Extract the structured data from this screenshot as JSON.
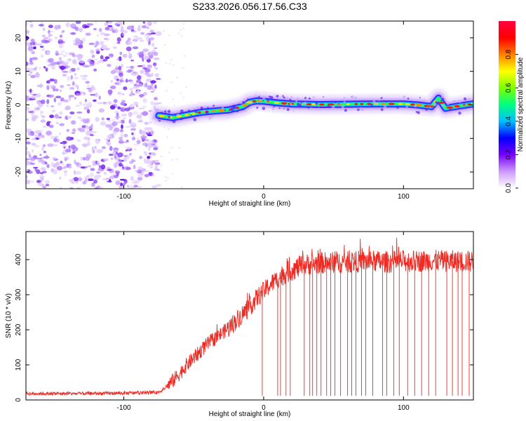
{
  "title": "S233.2026.056.17.56.C33",
  "colors": {
    "snr_line": "#ee2a22",
    "spectrum_noise": "#8a2be2",
    "colorbar_stops": [
      "#ffffff",
      "#cc99ff",
      "#7700ff",
      "#0000ff",
      "#00bfff",
      "#00ff80",
      "#80ff00",
      "#ffff00",
      "#ff8000",
      "#ff0000",
      "#ff0040"
    ]
  },
  "chart_data": [
    {
      "type": "heatmap",
      "name": "spectrogram",
      "xlabel": "Height of straight line (km)",
      "ylabel": "Frequency (Hz)",
      "xlim": [
        -170,
        150
      ],
      "ylim": [
        -25,
        25
      ],
      "xticks": [
        -100,
        0,
        100
      ],
      "xtick_labels": [
        "-100",
        "0",
        "100"
      ],
      "yticks": [
        -20,
        -10,
        0,
        10,
        20
      ],
      "ytick_labels": [
        "-20",
        "-10",
        "0",
        "10",
        "20"
      ],
      "noise_region_x": [
        -170,
        -75
      ],
      "signal_track": {
        "x": [
          -75,
          -65,
          -55,
          -45,
          -35,
          -25,
          -15,
          -10,
          -5,
          0,
          10,
          20,
          40,
          60,
          80,
          100,
          110,
          120,
          125,
          130,
          140,
          150
        ],
        "freq": [
          -3.2,
          -3.8,
          -3.0,
          -2.2,
          -1.8,
          -1.5,
          -0.5,
          0.8,
          1.2,
          1.1,
          0.6,
          0.3,
          0.1,
          0.2,
          0.3,
          0.3,
          0.0,
          -0.5,
          2.0,
          -1.0,
          -0.3,
          0.3
        ]
      },
      "colorbar": {
        "label": "Normalized spectral amplitude",
        "range": [
          0.0,
          1.0
        ],
        "ticks": [
          0.0,
          0.2,
          0.4,
          0.6,
          0.8
        ],
        "tick_labels": [
          "0.0",
          "0.2",
          "0.4",
          "0.6",
          "0.8"
        ]
      }
    },
    {
      "type": "line",
      "name": "snr",
      "xlabel": "Height of straight line (km)",
      "ylabel": "SNR (10 * v/v)",
      "xlim": [
        -170,
        150
      ],
      "ylim": [
        0,
        480
      ],
      "xticks": [
        -100,
        0,
        100
      ],
      "xtick_labels": [
        "-100",
        "0",
        "100"
      ],
      "yticks": [
        0,
        100,
        200,
        300,
        400
      ],
      "ytick_labels": [
        "0",
        "100",
        "200",
        "300",
        "400"
      ],
      "series": [
        {
          "name": "SNR",
          "x": [
            -170,
            -150,
            -130,
            -110,
            -90,
            -75,
            -70,
            -65,
            -60,
            -55,
            -50,
            -45,
            -40,
            -35,
            -30,
            -25,
            -20,
            -15,
            -10,
            -5,
            0,
            5,
            10,
            15,
            20,
            25,
            30,
            40,
            50,
            60,
            70,
            80,
            90,
            100,
            110,
            120,
            130,
            140,
            150
          ],
          "values": [
            18,
            18,
            18,
            19,
            20,
            22,
            35,
            55,
            75,
            100,
            120,
            140,
            160,
            175,
            190,
            205,
            225,
            245,
            265,
            290,
            310,
            330,
            345,
            360,
            370,
            378,
            385,
            390,
            392,
            393,
            395,
            395,
            393,
            396,
            395,
            397,
            396,
            395,
            395
          ]
        }
      ],
      "dropout_x": [
        -1,
        10,
        12,
        16,
        19,
        29,
        33,
        35,
        38,
        41,
        45,
        48,
        51,
        55,
        60,
        63,
        66,
        70,
        73,
        78,
        85,
        88,
        93,
        97,
        103,
        108,
        113,
        118,
        123,
        131,
        135,
        139,
        142,
        147
      ],
      "dropout_level": 12
    }
  ]
}
